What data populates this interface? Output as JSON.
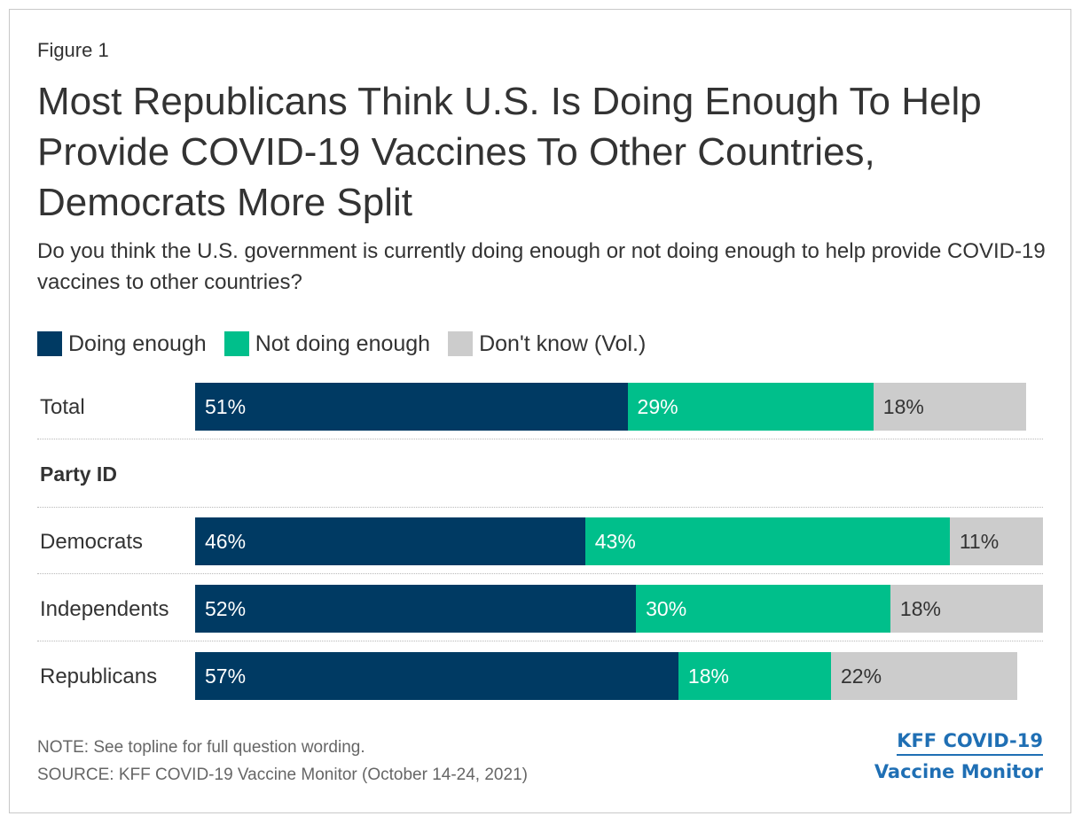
{
  "figure_label": "Figure 1",
  "title": "Most Republicans Think U.S. Is Doing Enough To Help Provide COVID-19 Vaccines To Other Countries, Democrats More Split",
  "subtitle": "Do you think the U.S. government is currently doing enough or not doing enough to help provide COVID-19 vaccines to other countries?",
  "group_label": "Party ID",
  "note": "NOTE: See topline for full question wording.",
  "source": "SOURCE: KFF COVID-19 Vaccine Monitor (October 14-24, 2021)",
  "logo": {
    "line1": "KFF COVID-19",
    "line2": "Vaccine Monitor"
  },
  "colors": {
    "doing": "#003a63",
    "not_doing": "#00bf8b",
    "dont_know": "#cccccc"
  },
  "chart_data": {
    "type": "bar",
    "stacked": true,
    "orientation": "horizontal",
    "categories": [
      "Total",
      "Democrats",
      "Independents",
      "Republicans"
    ],
    "series": [
      {
        "name": "Doing enough",
        "color": "#003a63",
        "values": [
          51,
          46,
          52,
          57
        ],
        "labels": [
          "51%",
          "46%",
          "52%",
          "57%"
        ]
      },
      {
        "name": "Not doing enough",
        "color": "#00bf8b",
        "values": [
          29,
          43,
          30,
          18
        ],
        "labels": [
          "29%",
          "43%",
          "30%",
          "18%"
        ]
      },
      {
        "name": "Don't know (Vol.)",
        "color": "#cccccc",
        "values": [
          18,
          11,
          18,
          22
        ],
        "labels": [
          "18%",
          "11%",
          "18%",
          "22%"
        ]
      }
    ],
    "unit": "%",
    "xlim": [
      0,
      100
    ],
    "legend_position": "top-left"
  }
}
